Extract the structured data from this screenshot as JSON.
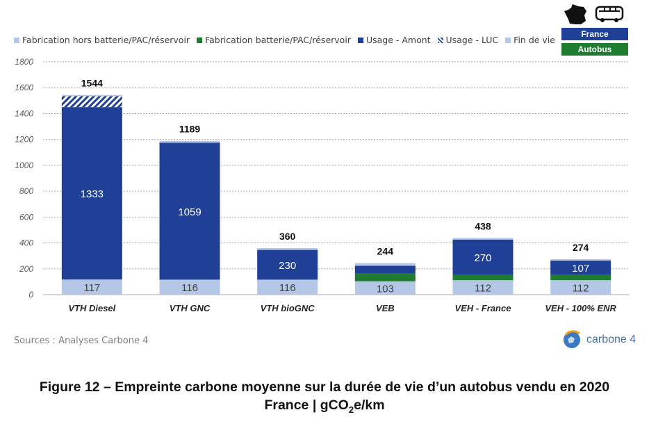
{
  "legend": {
    "items": [
      {
        "label": "Fabrication hors batterie/PAC/réservoir",
        "color": "#b4c7e7"
      },
      {
        "label": "Fabrication batterie/PAC/réservoir",
        "color": "#1e7b30"
      },
      {
        "label": "Usage - Amont",
        "color": "#203f96"
      },
      {
        "label": "Usage - LUC",
        "color": "#203f96",
        "pattern": "hatched"
      },
      {
        "label": "Fin de vie",
        "color": "#b4c7e7"
      }
    ]
  },
  "badges": {
    "top_label": "France",
    "bottom_label": "Autobus",
    "top_color": "#203f96",
    "bottom_color": "#1e7b30",
    "icons": [
      "france-map-icon",
      "bus-icon"
    ]
  },
  "chart_data": {
    "type": "bar",
    "stacked": true,
    "categories": [
      "VTH Diesel",
      "VTH GNC",
      "VTH bioGNC",
      "VEB",
      "VEH - France",
      "VEH - 100% ENR"
    ],
    "series": [
      {
        "name": "Fabrication hors batterie/PAC/réservoir",
        "color": "#b4c7e7",
        "values": [
          117,
          116,
          116,
          103,
          112,
          112
        ]
      },
      {
        "name": "Fabrication batterie/PAC/réservoir",
        "color": "#1e7b30",
        "values": [
          0,
          0,
          0,
          60,
          44,
          44
        ]
      },
      {
        "name": "Usage - Amont",
        "color": "#203f96",
        "values": [
          1333,
          1059,
          230,
          60,
          270,
          107
        ]
      },
      {
        "name": "Usage - LUC",
        "color": "#203f96",
        "pattern": "hatched",
        "values": [
          84,
          0,
          0,
          0,
          0,
          0
        ]
      },
      {
        "name": "Fin de vie",
        "color": "#b4c7e7",
        "values": [
          10,
          14,
          14,
          21,
          12,
          11
        ]
      }
    ],
    "segment_labels": [
      [
        "117",
        "1333"
      ],
      [
        "116",
        "1059"
      ],
      [
        "116",
        "230"
      ],
      [
        "103"
      ],
      [
        "112",
        "270"
      ],
      [
        "112",
        "107"
      ]
    ],
    "totals": [
      1544,
      1189,
      360,
      244,
      438,
      274
    ],
    "ylim": [
      0,
      1800
    ],
    "yticks": [
      0,
      200,
      400,
      600,
      800,
      1000,
      1200,
      1400,
      1600,
      1800
    ],
    "grid": true,
    "legend_position": "top"
  },
  "footer": {
    "sources": "Sources : Analyses Carbone 4",
    "logo_text": "carbone 4"
  },
  "caption": {
    "line1": "Figure 12 – Empreinte carbone moyenne sur la durée de vie d’un autobus vendu en 2020",
    "line2_prefix": "France | gCO",
    "line2_sub": "2",
    "line2_suffix": "e/km"
  }
}
